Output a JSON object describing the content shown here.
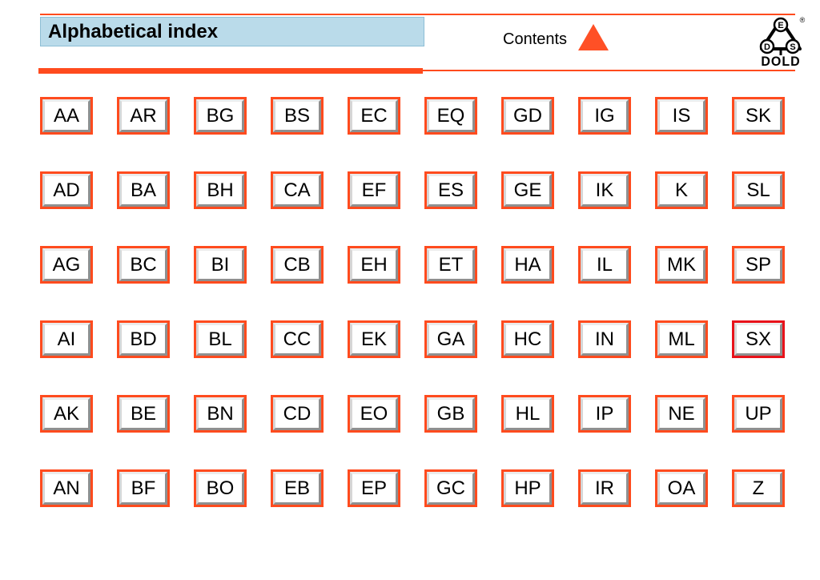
{
  "header": {
    "title": "Alphabetical index",
    "contents_label": "Contents",
    "logo_text": "DOLD",
    "logo_letters": [
      "E",
      "D",
      "S"
    ],
    "registered_mark": "®"
  },
  "colors": {
    "accent_orange": "#ff4b1e",
    "triangle_orange": "#ff5026",
    "header_blue": "#badbea",
    "highlight_red": "#e8121a"
  },
  "index_grid": {
    "rows": [
      [
        "AA",
        "AR",
        "BG",
        "BS",
        "EC",
        "EQ",
        "GD",
        "IG",
        "IS",
        "SK"
      ],
      [
        "AD",
        "BA",
        "BH",
        "CA",
        "EF",
        "ES",
        "GE",
        "IK",
        "K",
        "SL"
      ],
      [
        "AG",
        "BC",
        "BI",
        "CB",
        "EH",
        "ET",
        "HA",
        "IL",
        "MK",
        "SP"
      ],
      [
        "AI",
        "BD",
        "BL",
        "CC",
        "EK",
        "GA",
        "HC",
        "IN",
        "ML",
        "SX"
      ],
      [
        "AK",
        "BE",
        "BN",
        "CD",
        "EO",
        "GB",
        "HL",
        "IP",
        "NE",
        "UP"
      ],
      [
        "AN",
        "BF",
        "BO",
        "EB",
        "EP",
        "GC",
        "HP",
        "IR",
        "OA",
        "Z"
      ]
    ],
    "highlighted": "SX"
  }
}
